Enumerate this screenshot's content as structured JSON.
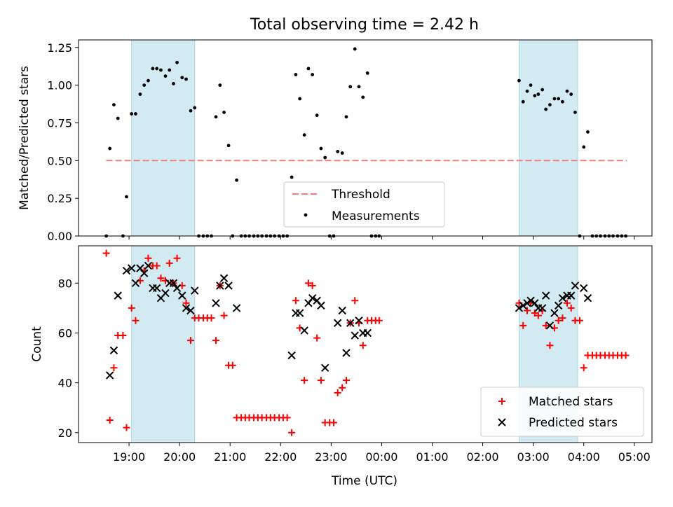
{
  "title": "Total observing time = 2.42 h",
  "xlabel": "Time (UTC)",
  "x_ticks": [
    "19:00",
    "20:00",
    "21:00",
    "22:00",
    "23:00",
    "00:00",
    "01:00",
    "02:00",
    "03:00",
    "04:00",
    "05:00"
  ],
  "colors": {
    "threshold": "#f08080",
    "measurements": "#000000",
    "matched": "#ff0000",
    "predicted": "#000000",
    "shade": "#add8e6"
  },
  "chart_data": [
    {
      "type": "scatter",
      "ylabel": "Matched/Predicted stars",
      "ylim": [
        0,
        1.3
      ],
      "y_ticks": [
        "0.00",
        "0.25",
        "0.50",
        "0.75",
        "1.00",
        "1.25"
      ],
      "y_tick_values": [
        0,
        0.25,
        0.5,
        0.75,
        1.0,
        1.25
      ],
      "x_unit": "hours since 18:00 UTC",
      "xlim": [
        0.0,
        11.35
      ],
      "shaded_intervals": [
        [
          1.05,
          2.3
        ],
        [
          8.72,
          9.88
        ]
      ],
      "threshold_line": {
        "y": 0.5,
        "x_range": [
          0.55,
          10.85
        ]
      },
      "legend": {
        "placement": "lower-center",
        "entries": [
          "Threshold",
          "Measurements"
        ]
      },
      "series": [
        {
          "name": "Measurements",
          "points": [
            [
              0.55,
              0.0
            ],
            [
              0.62,
              0.58
            ],
            [
              0.7,
              0.87
            ],
            [
              0.78,
              0.78
            ],
            [
              0.88,
              0.0
            ],
            [
              0.95,
              0.26
            ],
            [
              1.05,
              0.81
            ],
            [
              1.13,
              0.81
            ],
            [
              1.22,
              0.94
            ],
            [
              1.3,
              1.0
            ],
            [
              1.38,
              1.03
            ],
            [
              1.47,
              1.11
            ],
            [
              1.55,
              1.11
            ],
            [
              1.63,
              1.1
            ],
            [
              1.72,
              1.06
            ],
            [
              1.8,
              1.1
            ],
            [
              1.88,
              1.01
            ],
            [
              1.95,
              1.15
            ],
            [
              2.05,
              1.05
            ],
            [
              2.13,
              1.04
            ],
            [
              2.22,
              0.83
            ],
            [
              2.3,
              0.85
            ],
            [
              2.38,
              0.0
            ],
            [
              2.47,
              0.0
            ],
            [
              2.55,
              0.0
            ],
            [
              2.63,
              0.0
            ],
            [
              2.72,
              0.79
            ],
            [
              2.8,
              1.0
            ],
            [
              2.88,
              0.82
            ],
            [
              2.97,
              0.6
            ],
            [
              3.05,
              0.0
            ],
            [
              3.13,
              0.37
            ],
            [
              3.22,
              0.0
            ],
            [
              3.3,
              0.0
            ],
            [
              3.38,
              0.0
            ],
            [
              3.47,
              0.0
            ],
            [
              3.55,
              0.0
            ],
            [
              3.63,
              0.0
            ],
            [
              3.72,
              0.0
            ],
            [
              3.8,
              0.0
            ],
            [
              3.88,
              0.0
            ],
            [
              3.97,
              0.0
            ],
            [
              4.05,
              0.0
            ],
            [
              4.13,
              0.0
            ],
            [
              4.22,
              0.39
            ],
            [
              4.3,
              1.07
            ],
            [
              4.38,
              0.91
            ],
            [
              4.47,
              0.67
            ],
            [
              4.55,
              1.11
            ],
            [
              4.63,
              1.07
            ],
            [
              4.72,
              0.8
            ],
            [
              4.8,
              0.58
            ],
            [
              4.88,
              0.52
            ],
            [
              4.97,
              0.0
            ],
            [
              5.05,
              0.0
            ],
            [
              5.13,
              0.56
            ],
            [
              5.22,
              0.55
            ],
            [
              5.3,
              0.79
            ],
            [
              5.38,
              0.99
            ],
            [
              5.47,
              1.24
            ],
            [
              5.55,
              0.99
            ],
            [
              5.63,
              0.92
            ],
            [
              5.72,
              1.08
            ],
            [
              5.8,
              0.0
            ],
            [
              5.88,
              0.0
            ],
            [
              5.95,
              0.0
            ],
            [
              8.72,
              1.03
            ],
            [
              8.8,
              0.89
            ],
            [
              8.88,
              0.96
            ],
            [
              8.95,
              1.0
            ],
            [
              9.03,
              0.93
            ],
            [
              9.1,
              0.94
            ],
            [
              9.18,
              0.97
            ],
            [
              9.25,
              0.84
            ],
            [
              9.33,
              0.87
            ],
            [
              9.42,
              0.91
            ],
            [
              9.5,
              0.91
            ],
            [
              9.58,
              0.89
            ],
            [
              9.67,
              0.96
            ],
            [
              9.75,
              0.94
            ],
            [
              9.83,
              0.82
            ],
            [
              9.92,
              0.0
            ],
            [
              10.0,
              0.59
            ],
            [
              10.08,
              0.69
            ],
            [
              10.17,
              0.0
            ],
            [
              10.25,
              0.0
            ],
            [
              10.33,
              0.0
            ],
            [
              10.42,
              0.0
            ],
            [
              10.5,
              0.0
            ],
            [
              10.58,
              0.0
            ],
            [
              10.67,
              0.0
            ],
            [
              10.75,
              0.0
            ],
            [
              10.83,
              0.0
            ]
          ]
        }
      ]
    },
    {
      "type": "scatter",
      "ylabel": "Count",
      "ylim": [
        16,
        95
      ],
      "y_ticks": [
        "20",
        "40",
        "60",
        "80"
      ],
      "y_tick_values": [
        20,
        40,
        60,
        80
      ],
      "x_unit": "hours since 18:00 UTC",
      "xlim": [
        0.0,
        11.35
      ],
      "shaded_intervals": [
        [
          1.05,
          2.3
        ],
        [
          8.72,
          9.88
        ]
      ],
      "legend": {
        "placement": "lower-right",
        "entries": [
          "Matched stars",
          "Predicted stars"
        ]
      },
      "series": [
        {
          "name": "Matched stars",
          "marker": "+",
          "points": [
            [
              0.55,
              92
            ],
            [
              0.62,
              25
            ],
            [
              0.7,
              46
            ],
            [
              0.78,
              59
            ],
            [
              0.88,
              59
            ],
            [
              0.95,
              22
            ],
            [
              1.05,
              70
            ],
            [
              1.13,
              65
            ],
            [
              1.22,
              81
            ],
            [
              1.3,
              85
            ],
            [
              1.38,
              90
            ],
            [
              1.47,
              87
            ],
            [
              1.55,
              87
            ],
            [
              1.63,
              82
            ],
            [
              1.72,
              81
            ],
            [
              1.8,
              88
            ],
            [
              1.88,
              80
            ],
            [
              1.95,
              90
            ],
            [
              2.05,
              79
            ],
            [
              2.13,
              72
            ],
            [
              2.22,
              57
            ],
            [
              2.3,
              66
            ],
            [
              2.38,
              66
            ],
            [
              2.47,
              66
            ],
            [
              2.55,
              66
            ],
            [
              2.63,
              66
            ],
            [
              2.72,
              57
            ],
            [
              2.8,
              79
            ],
            [
              2.88,
              67
            ],
            [
              2.97,
              47
            ],
            [
              3.05,
              47
            ],
            [
              3.13,
              26
            ],
            [
              3.22,
              26
            ],
            [
              3.3,
              26
            ],
            [
              3.38,
              26
            ],
            [
              3.47,
              26
            ],
            [
              3.55,
              26
            ],
            [
              3.63,
              26
            ],
            [
              3.72,
              26
            ],
            [
              3.8,
              26
            ],
            [
              3.88,
              26
            ],
            [
              3.97,
              26
            ],
            [
              4.05,
              26
            ],
            [
              4.13,
              26
            ],
            [
              4.22,
              20
            ],
            [
              4.3,
              73
            ],
            [
              4.38,
              62
            ],
            [
              4.47,
              41
            ],
            [
              4.55,
              80
            ],
            [
              4.63,
              79
            ],
            [
              4.72,
              58
            ],
            [
              4.8,
              41
            ],
            [
              4.88,
              24
            ],
            [
              4.97,
              24
            ],
            [
              5.05,
              24
            ],
            [
              5.13,
              36
            ],
            [
              5.22,
              38
            ],
            [
              5.3,
              41
            ],
            [
              5.38,
              64
            ],
            [
              5.47,
              73
            ],
            [
              5.55,
              64
            ],
            [
              5.63,
              55
            ],
            [
              5.72,
              65
            ],
            [
              5.8,
              65
            ],
            [
              5.88,
              65
            ],
            [
              5.95,
              65
            ],
            [
              8.72,
              72
            ],
            [
              8.8,
              63
            ],
            [
              8.88,
              69
            ],
            [
              8.95,
              72
            ],
            [
              9.03,
              68
            ],
            [
              9.1,
              67
            ],
            [
              9.18,
              69
            ],
            [
              9.25,
              63
            ],
            [
              9.33,
              55
            ],
            [
              9.42,
              62
            ],
            [
              9.5,
              65
            ],
            [
              9.58,
              66
            ],
            [
              9.67,
              72
            ],
            [
              9.75,
              70
            ],
            [
              9.83,
              65
            ],
            [
              9.92,
              65
            ],
            [
              10.0,
              46
            ],
            [
              10.08,
              51
            ],
            [
              10.17,
              51
            ],
            [
              10.25,
              51
            ],
            [
              10.33,
              51
            ],
            [
              10.42,
              51
            ],
            [
              10.5,
              51
            ],
            [
              10.58,
              51
            ],
            [
              10.67,
              51
            ],
            [
              10.75,
              51
            ],
            [
              10.83,
              51
            ]
          ]
        },
        {
          "name": "Predicted stars",
          "marker": "x",
          "points": [
            [
              0.62,
              43
            ],
            [
              0.7,
              53
            ],
            [
              0.78,
              75
            ],
            [
              0.95,
              85
            ],
            [
              1.05,
              86
            ],
            [
              1.13,
              80
            ],
            [
              1.22,
              86
            ],
            [
              1.3,
              84
            ],
            [
              1.38,
              87
            ],
            [
              1.47,
              78
            ],
            [
              1.55,
              78
            ],
            [
              1.63,
              74
            ],
            [
              1.72,
              76
            ],
            [
              1.8,
              80
            ],
            [
              1.88,
              80
            ],
            [
              1.95,
              78
            ],
            [
              2.05,
              75
            ],
            [
              2.13,
              70
            ],
            [
              2.22,
              69
            ],
            [
              2.3,
              77
            ],
            [
              2.72,
              72
            ],
            [
              2.8,
              79
            ],
            [
              2.88,
              82
            ],
            [
              2.97,
              79
            ],
            [
              3.13,
              70
            ],
            [
              4.22,
              51
            ],
            [
              4.3,
              68
            ],
            [
              4.38,
              68
            ],
            [
              4.47,
              61
            ],
            [
              4.55,
              72
            ],
            [
              4.63,
              74
            ],
            [
              4.72,
              73
            ],
            [
              4.8,
              71
            ],
            [
              4.88,
              46
            ],
            [
              5.13,
              64
            ],
            [
              5.22,
              69
            ],
            [
              5.3,
              52
            ],
            [
              5.38,
              64
            ],
            [
              5.47,
              59
            ],
            [
              5.55,
              65
            ],
            [
              5.63,
              60
            ],
            [
              5.72,
              60
            ],
            [
              8.72,
              70
            ],
            [
              8.8,
              71
            ],
            [
              8.88,
              72
            ],
            [
              8.95,
              73
            ],
            [
              9.03,
              72
            ],
            [
              9.1,
              70
            ],
            [
              9.18,
              70
            ],
            [
              9.25,
              75
            ],
            [
              9.33,
              63
            ],
            [
              9.42,
              68
            ],
            [
              9.5,
              71
            ],
            [
              9.58,
              74
            ],
            [
              9.67,
              75
            ],
            [
              9.75,
              75
            ],
            [
              9.83,
              79
            ],
            [
              10.0,
              78
            ],
            [
              10.08,
              74
            ]
          ]
        }
      ]
    }
  ]
}
